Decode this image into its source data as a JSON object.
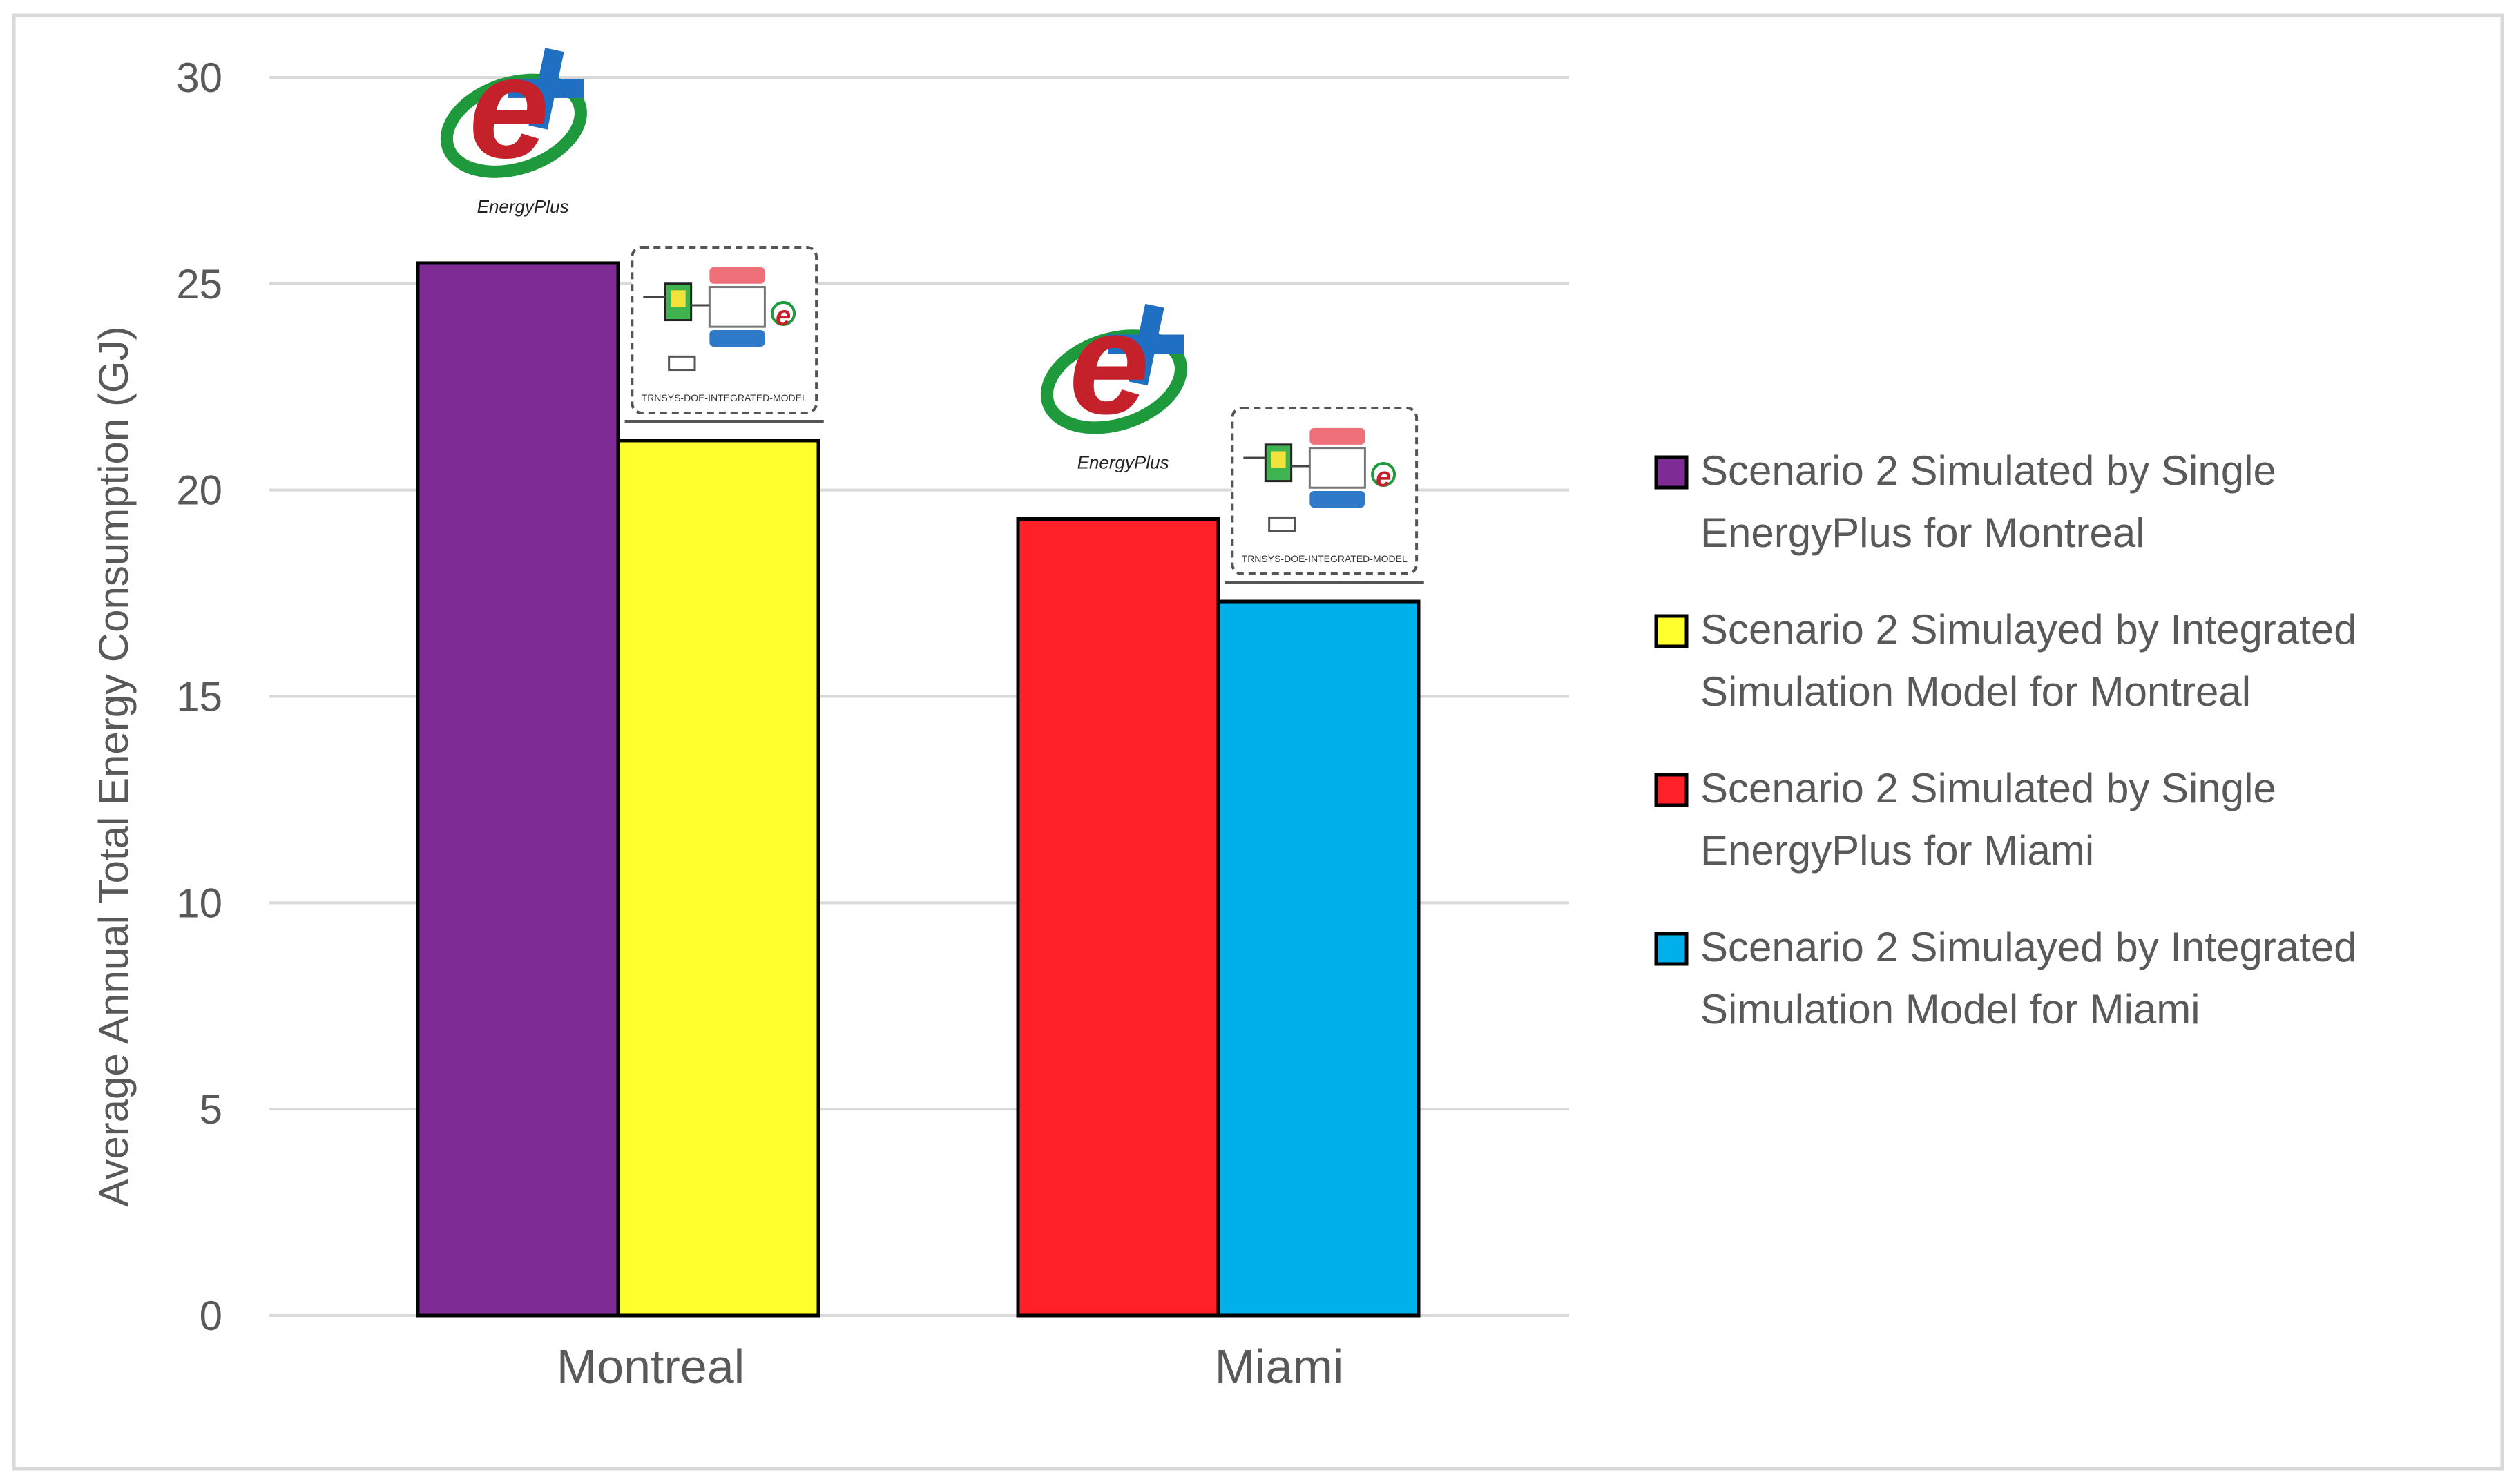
{
  "chart_data": {
    "type": "bar",
    "categories": [
      "Montreal",
      "Miami"
    ],
    "ylabel": "Average Annual Total Energy Consumption (GJ)",
    "ylim": [
      0,
      30
    ],
    "yticks": [
      0,
      5,
      10,
      15,
      20,
      25,
      30
    ],
    "grid": true,
    "legend_position": "right",
    "series": [
      {
        "name": "Scenario 2 Simulated by Single EnergyPlus for Montreal",
        "category": "Montreal",
        "value": 25.5,
        "color": "#7f2b96"
      },
      {
        "name": "Scenario 2 Simulayed by Integrated Simulation Model for Montreal",
        "category": "Montreal",
        "value": 21.2,
        "color": "#ffff2e"
      },
      {
        "name": "Scenario 2 Simulated by Single EnergyPlus for Miami",
        "category": "Miami",
        "value": 19.3,
        "color": "#ff2028"
      },
      {
        "name": "Scenario 2 Simulayed by Integrated Simulation Model for Miami",
        "category": "Miami",
        "value": 17.3,
        "color": "#00b0ea"
      }
    ],
    "legend": [
      {
        "line1": "Scenario 2 Simulated by Single",
        "line2": "EnergyPlus for Montreal",
        "color": "#7f2b96"
      },
      {
        "line1": "Scenario 2 Simulayed by Integrated",
        "line2": "Simulation Model for Montreal",
        "color": "#ffff2e"
      },
      {
        "line1": "Scenario 2 Simulated by Single",
        "line2": "EnergyPlus for Miami",
        "color": "#ff2028"
      },
      {
        "line1": "Scenario 2 Simulayed by Integrated",
        "line2": "Simulation Model for Miami",
        "color": "#00b0ea"
      }
    ],
    "logos": [
      {
        "name": "energyplus-logo",
        "caption": "EnergyPlus",
        "over_series": 0
      },
      {
        "name": "integrated-model-diagram-icon",
        "caption": "TRNSYS-DOE-INTEGRATED-MODEL",
        "over_series": 1
      },
      {
        "name": "energyplus-logo",
        "caption": "EnergyPlus",
        "over_series": 2
      },
      {
        "name": "integrated-model-diagram-icon",
        "caption": "TRNSYS-DOE-INTEGRATED-MODEL",
        "over_series": 3
      }
    ]
  }
}
